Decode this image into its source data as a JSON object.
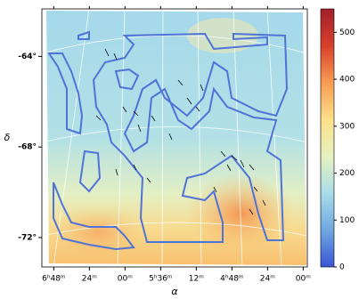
{
  "chart_data": {
    "type": "map",
    "x_label": "α",
    "y_label": "δ",
    "xlim": [
      104,
      59.3
    ],
    "xticks": [
      {
        "value": 102,
        "label": "6ʰ48ᵐ"
      },
      {
        "value": 96,
        "label": "24ᵐ"
      },
      {
        "value": 90,
        "label": "00ᵐ"
      },
      {
        "value": 84,
        "label": "5ʰ36ᵐ"
      },
      {
        "value": 78,
        "label": "12ᵐ"
      },
      {
        "value": 72,
        "label": "4ʰ48ᵐ"
      },
      {
        "value": 66,
        "label": "24ᵐ"
      },
      {
        "value": 60,
        "label": "00ᵐ"
      }
    ],
    "ylim": [
      -73.3,
      -61.9
    ],
    "yticks": [
      {
        "value": -64,
        "label": "-64°"
      },
      {
        "value": -68,
        "label": "-68°"
      },
      {
        "value": -72,
        "label": "-72°"
      }
    ],
    "colorbar": {
      "lim": [
        0,
        550
      ],
      "ticks": [
        0,
        100,
        200,
        300,
        400,
        500
      ],
      "colors": [
        "#3a55d6",
        "#6fa8e0",
        "#a9dcea",
        "#e6f2c0",
        "#fde08a",
        "#f89c52",
        "#d7402c",
        "#a01f2a"
      ]
    }
  }
}
